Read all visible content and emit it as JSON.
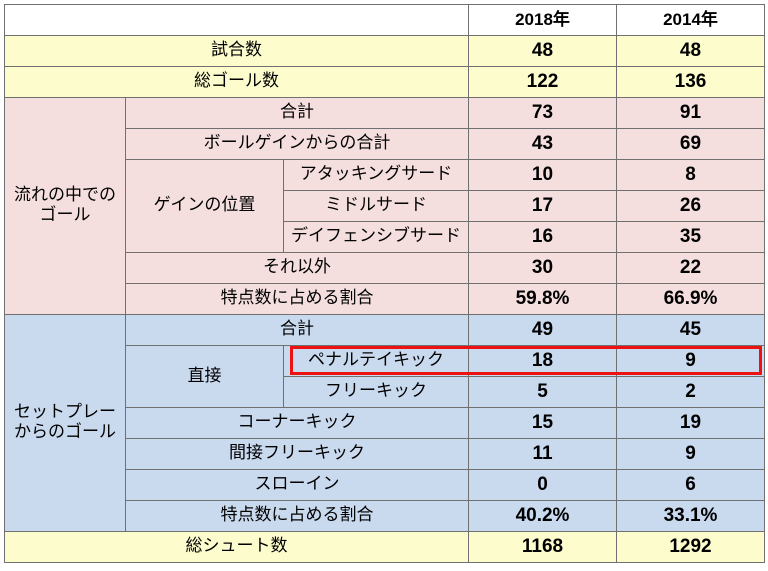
{
  "header": {
    "year_a": "2018年",
    "year_b": "2014年"
  },
  "overview": {
    "matches": {
      "label": "試合数",
      "a": "48",
      "b": "48"
    },
    "total_goals": {
      "label": "総ゴール数",
      "a": "122",
      "b": "136"
    }
  },
  "open_play": {
    "group_label": "流れの中でのゴール",
    "total": {
      "label": "合計",
      "a": "73",
      "b": "91"
    },
    "ball_gain_total": {
      "label": "ボールゲインからの合計",
      "a": "43",
      "b": "69"
    },
    "gain_position_label": "ゲインの位置",
    "attacking_third": {
      "label": "アタッキングサード",
      "a": "10",
      "b": "8"
    },
    "middle_third": {
      "label": "ミドルサード",
      "a": "17",
      "b": "26"
    },
    "defensive_third": {
      "label": "デイフェンシブサード",
      "a": "16",
      "b": "35"
    },
    "other": {
      "label": "それ以外",
      "a": "30",
      "b": "22"
    },
    "share": {
      "label": "特点数に占める割合",
      "a": "59.8%",
      "b": "66.9%"
    }
  },
  "set_play": {
    "group_label": "セットプレーからのゴール",
    "total": {
      "label": "合計",
      "a": "49",
      "b": "45"
    },
    "direct_label": "直接",
    "penalty": {
      "label": "ペナルテイキック",
      "a": "18",
      "b": "9"
    },
    "free_kick": {
      "label": "フリーキック",
      "a": "5",
      "b": "2"
    },
    "corner": {
      "label": "コーナーキック",
      "a": "15",
      "b": "19"
    },
    "indirect_free_kick": {
      "label": "間接フリーキック",
      "a": "11",
      "b": "9"
    },
    "throw_in": {
      "label": "スローイン",
      "a": "0",
      "b": "6"
    },
    "share": {
      "label": "特点数に占める割合",
      "a": "40.2%",
      "b": "33.1%"
    }
  },
  "shots": {
    "label": "総シュート数",
    "a": "1168",
    "b": "1292"
  },
  "colors": {
    "header": "#ffffff",
    "overview": "#fdfccc",
    "open_play": "#f4dede",
    "set_play": "#c9d9ee",
    "highlight_border": "#ee1111",
    "grid": "#707070"
  }
}
